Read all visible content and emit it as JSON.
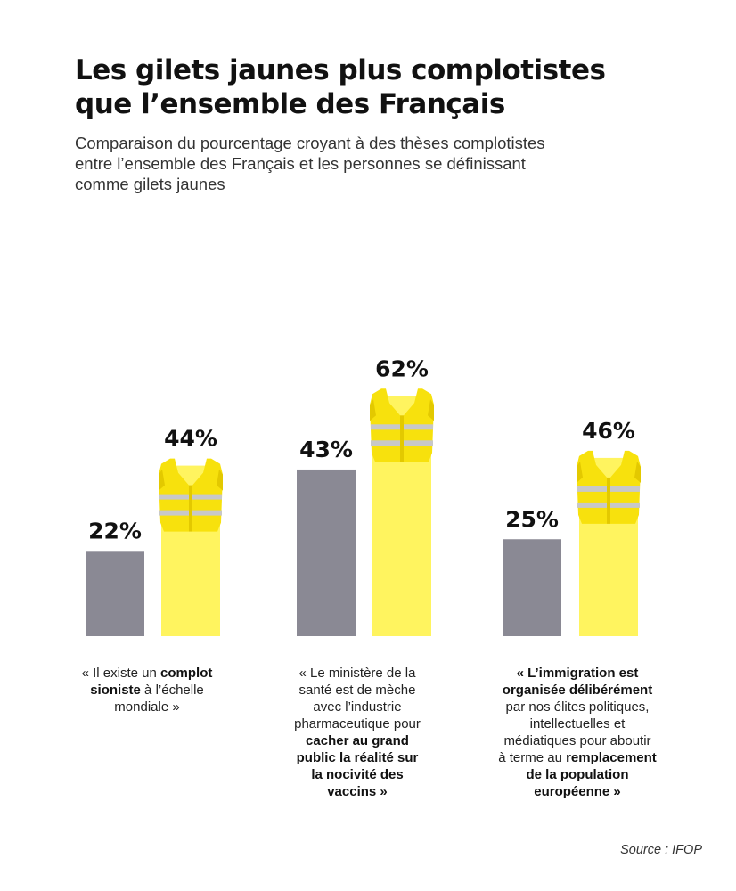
{
  "header": {
    "title_lines": [
      "Les gilets jaunes plus complotistes",
      "que l’ensemble des Français"
    ],
    "subtitle_lines": [
      "Comparaison du pourcentage croyant à des thèses complotistes",
      "entre l’ensemble des Français et les personnes se définissant",
      "comme gilets jaunes"
    ]
  },
  "chart_data": {
    "type": "bar",
    "categories": [
      "complot sioniste",
      "ministère de la santé",
      "immigration"
    ],
    "series": [
      {
        "values": [
          22,
          43,
          25
        ],
        "color": "#8a8994"
      },
      {
        "values": [
          44,
          62,
          46
        ],
        "color": "#fff45f"
      }
    ],
    "value_labels": [
      [
        "22%",
        "43%",
        "25%"
      ],
      [
        "44%",
        "62%",
        "46%"
      ]
    ],
    "ylim": [
      0,
      100
    ],
    "grid": false,
    "vest_icon": "yellow-vest-icon",
    "colors": {
      "vest": "#f7e10d",
      "vest_dark": "#e3c900",
      "vest_stripe": "#c8c8c8"
    }
  },
  "captions": [
    [
      [
        [
          "« Il existe un ",
          false
        ],
        [
          "complot",
          true
        ]
      ],
      [
        [
          "sioniste",
          true
        ],
        [
          " à l’échelle",
          false
        ]
      ],
      [
        [
          "mondiale »",
          false
        ]
      ]
    ],
    [
      [
        [
          "« Le ministère de la",
          false
        ]
      ],
      [
        [
          "santé est de mèche",
          false
        ]
      ],
      [
        [
          "avec l’industrie",
          false
        ]
      ],
      [
        [
          "pharmaceutique pour",
          false
        ]
      ],
      [
        [
          "cacher au grand",
          true
        ]
      ],
      [
        [
          "public la réalité sur",
          true
        ]
      ],
      [
        [
          "la nocivité des",
          true
        ]
      ],
      [
        [
          "vaccins »",
          true
        ]
      ]
    ],
    [
      [
        [
          "« L’immigration est",
          true
        ]
      ],
      [
        [
          "organisée délibérément",
          true
        ]
      ],
      [
        [
          "par nos élites politiques,",
          false
        ]
      ],
      [
        [
          "intellectuelles et",
          false
        ]
      ],
      [
        [
          "médiatiques pour aboutir",
          false
        ]
      ],
      [
        [
          "à terme au ",
          false
        ],
        [
          "remplacement",
          true
        ]
      ],
      [
        [
          "de la population",
          true
        ]
      ],
      [
        [
          "européenne »",
          true
        ]
      ]
    ]
  ],
  "source": "Source : IFOP"
}
